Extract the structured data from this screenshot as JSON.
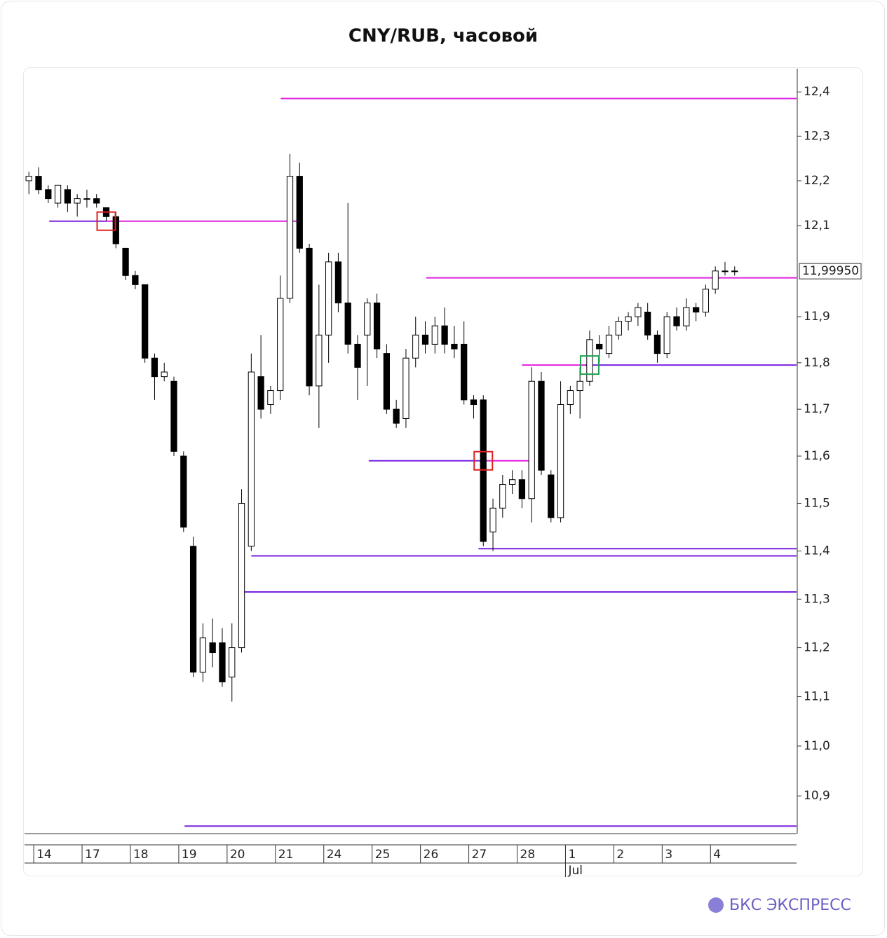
{
  "chart_data": {
    "type": "candlestick",
    "title": "CNY/RUB, часовой",
    "log_scale": true,
    "up_color": "#ffffff",
    "down_color": "#000000",
    "x": [
      -0.1,
      0.1,
      0.3,
      0.5,
      0.7,
      0.9,
      1.1,
      1.3,
      1.5,
      1.7,
      1.9,
      2.1,
      2.3,
      2.5,
      2.7,
      2.9,
      3.1,
      3.3,
      3.5,
      3.7,
      3.9,
      4.1,
      4.3,
      4.5,
      4.7,
      4.9,
      5.1,
      5.3,
      5.5,
      5.7,
      5.9,
      6.1,
      6.3,
      6.5,
      6.7,
      6.9,
      7.1,
      7.3,
      7.5,
      7.7,
      7.9,
      8.1,
      8.3,
      8.5,
      8.7,
      8.9,
      9.1,
      9.3,
      9.5,
      9.7,
      9.9,
      10.1,
      10.3,
      10.5,
      10.7,
      10.9,
      11.1,
      11.3,
      11.5,
      11.7,
      11.9,
      12.1,
      12.3,
      12.5,
      12.7,
      12.9,
      13.1,
      13.3,
      13.5,
      13.7,
      13.9,
      14.1,
      14.3,
      14.5
    ],
    "open": [
      12.2,
      12.21,
      12.18,
      12.15,
      12.18,
      12.15,
      12.16,
      12.16,
      12.14,
      12.12,
      12.05,
      11.99,
      11.97,
      11.81,
      11.77,
      11.76,
      11.6,
      11.41,
      11.15,
      11.21,
      11.21,
      11.14,
      11.2,
      11.41,
      11.77,
      11.71,
      11.74,
      11.94,
      12.21,
      12.05,
      11.75,
      11.86,
      12.02,
      11.93,
      11.84,
      11.86,
      11.93,
      11.82,
      11.7,
      11.68,
      11.81,
      11.86,
      11.84,
      11.88,
      11.84,
      11.84,
      11.72,
      11.72,
      11.44,
      11.49,
      11.54,
      11.55,
      11.51,
      11.76,
      11.56,
      11.47,
      11.71,
      11.74,
      11.76,
      11.84,
      11.82,
      11.86,
      11.89,
      11.9,
      11.91,
      11.86,
      11.82,
      11.9,
      11.88,
      11.92,
      11.91,
      11.96,
      12.0,
      12.0
    ],
    "high": [
      12.22,
      12.23,
      12.19,
      12.19,
      12.19,
      12.17,
      12.18,
      12.17,
      12.14,
      12.13,
      12.05,
      12.0,
      11.97,
      11.82,
      11.8,
      11.77,
      11.61,
      11.43,
      11.25,
      11.26,
      11.24,
      11.25,
      11.53,
      11.82,
      11.86,
      11.75,
      11.99,
      12.26,
      12.24,
      12.06,
      11.97,
      12.04,
      12.04,
      12.15,
      11.86,
      11.94,
      11.95,
      11.84,
      11.72,
      11.83,
      11.9,
      11.89,
      11.9,
      11.92,
      11.88,
      11.89,
      11.73,
      11.73,
      11.51,
      11.56,
      11.57,
      11.57,
      11.79,
      11.78,
      11.57,
      11.76,
      11.75,
      11.79,
      11.87,
      11.86,
      11.88,
      11.9,
      11.91,
      11.93,
      11.93,
      11.87,
      11.91,
      11.92,
      11.94,
      11.93,
      11.97,
      12.01,
      12.02,
      12.01
    ],
    "low": [
      12.17,
      12.17,
      12.15,
      12.14,
      12.13,
      12.12,
      12.14,
      12.14,
      12.11,
      12.05,
      11.98,
      11.96,
      11.8,
      11.72,
      11.76,
      11.6,
      11.44,
      11.14,
      11.13,
      11.16,
      11.12,
      11.09,
      11.19,
      11.4,
      11.68,
      11.69,
      11.72,
      11.93,
      12.04,
      11.73,
      11.66,
      11.8,
      11.91,
      11.82,
      11.72,
      11.75,
      11.81,
      11.69,
      11.66,
      11.66,
      11.79,
      11.82,
      11.82,
      11.82,
      11.81,
      11.71,
      11.68,
      11.41,
      11.4,
      11.47,
      11.52,
      11.49,
      11.46,
      11.56,
      11.46,
      11.46,
      11.69,
      11.68,
      11.75,
      11.8,
      11.81,
      11.85,
      11.87,
      11.88,
      11.85,
      11.8,
      11.81,
      11.87,
      11.87,
      11.89,
      11.9,
      11.95,
      11.99,
      11.99
    ],
    "close": [
      12.21,
      12.18,
      12.16,
      12.19,
      12.15,
      12.16,
      12.16,
      12.15,
      12.12,
      12.06,
      11.99,
      11.97,
      11.81,
      11.77,
      11.78,
      11.61,
      11.45,
      11.15,
      11.22,
      11.19,
      11.13,
      11.2,
      11.5,
      11.78,
      11.7,
      11.74,
      11.94,
      12.21,
      12.05,
      11.75,
      11.86,
      12.02,
      11.93,
      11.84,
      11.79,
      11.93,
      11.83,
      11.7,
      11.67,
      11.81,
      11.86,
      11.84,
      11.88,
      11.84,
      11.83,
      11.72,
      11.71,
      11.42,
      11.49,
      11.54,
      11.55,
      11.51,
      11.76,
      11.57,
      11.47,
      11.71,
      11.74,
      11.76,
      11.85,
      11.83,
      11.86,
      11.89,
      11.9,
      11.92,
      11.86,
      11.82,
      11.9,
      11.88,
      11.92,
      11.91,
      11.96,
      12.0,
      12.0,
      12.0
    ],
    "xlim": [
      -0.19,
      15.78
    ],
    "ylim": [
      10.825,
      12.453
    ],
    "yticks": [
      {
        "value": 12.4,
        "label": "12,4"
      },
      {
        "value": 12.3,
        "label": "12,3"
      },
      {
        "value": 12.2,
        "label": "12,2"
      },
      {
        "value": 12.1,
        "label": "12,1"
      },
      {
        "value": 11.9,
        "label": "11,9"
      },
      {
        "value": 11.8,
        "label": "11,8"
      },
      {
        "value": 11.7,
        "label": "11,7"
      },
      {
        "value": 11.6,
        "label": "11,6"
      },
      {
        "value": 11.5,
        "label": "11,5"
      },
      {
        "value": 11.4,
        "label": "11,4"
      },
      {
        "value": 11.3,
        "label": "11,3"
      },
      {
        "value": 11.2,
        "label": "11,2"
      },
      {
        "value": 11.1,
        "label": "11,1"
      },
      {
        "value": 11.0,
        "label": "11,0"
      },
      {
        "value": 10.9,
        "label": "10,9"
      }
    ],
    "xticks": [
      {
        "value": 0,
        "label": "14"
      },
      {
        "value": 1,
        "label": "17"
      },
      {
        "value": 2,
        "label": "18"
      },
      {
        "value": 3,
        "label": "19"
      },
      {
        "value": 4,
        "label": "20"
      },
      {
        "value": 5,
        "label": "21"
      },
      {
        "value": 6,
        "label": "24"
      },
      {
        "value": 7,
        "label": "25"
      },
      {
        "value": 8,
        "label": "26"
      },
      {
        "value": 9,
        "label": "27"
      },
      {
        "value": 10,
        "label": "28"
      },
      {
        "value": 11,
        "label": "1"
      },
      {
        "value": 12,
        "label": "2"
      },
      {
        "value": 13,
        "label": "3"
      },
      {
        "value": 14,
        "label": "4"
      }
    ],
    "month_labels": [
      {
        "value": 11,
        "label": "Jul"
      }
    ],
    "last_price": {
      "value": 11.9995,
      "label": "11,99950"
    },
    "levels": [
      {
        "value": 12.385,
        "from": 5.11,
        "to": 15.78,
        "color": "#e020e0"
      },
      {
        "value": 12.11,
        "from": 0.32,
        "to": 1.5,
        "color": "#7a22e0"
      },
      {
        "value": 12.11,
        "from": 1.5,
        "to": 5.52,
        "color": "#e020e0"
      },
      {
        "value": 11.985,
        "from": 8.12,
        "to": 15.78,
        "color": "#e020e0"
      },
      {
        "value": 11.795,
        "from": 10.1,
        "to": 11.4,
        "color": "#e020e0"
      },
      {
        "value": 11.795,
        "from": 11.4,
        "to": 15.78,
        "color": "#7a22e0"
      },
      {
        "value": 11.59,
        "from": 6.93,
        "to": 9.3,
        "color": "#7a22e0"
      },
      {
        "value": 11.59,
        "from": 9.3,
        "to": 10.35,
        "color": "#e020e0"
      },
      {
        "value": 11.405,
        "from": 9.2,
        "to": 15.78,
        "color": "#7a22e0"
      },
      {
        "value": 11.39,
        "from": 4.5,
        "to": 15.78,
        "color": "#7a22e0"
      },
      {
        "value": 11.315,
        "from": 4.34,
        "to": 15.78,
        "color": "#7a22e0"
      },
      {
        "value": 10.84,
        "from": 3.12,
        "to": 15.78,
        "color": "#7a22e0"
      }
    ],
    "markers": [
      {
        "x": 1.5,
        "y": 12.11,
        "color": "#e02020"
      },
      {
        "x": 9.3,
        "y": 11.59,
        "color": "#e02020"
      },
      {
        "x": 11.5,
        "y": 11.795,
        "color": "#20a050"
      }
    ]
  },
  "brand": "БКС ЭКСПРЕСС"
}
